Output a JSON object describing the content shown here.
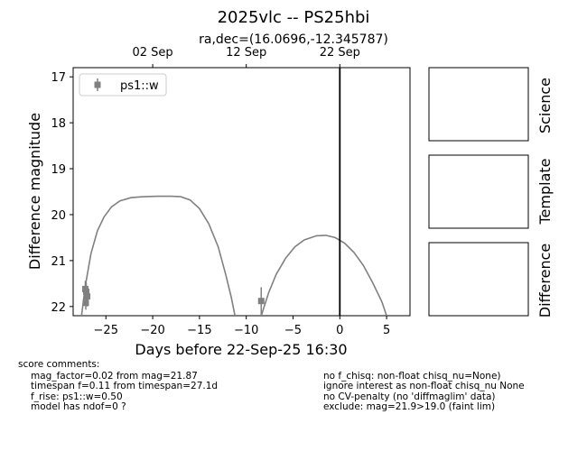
{
  "figure": {
    "title": "2025vlc -- PS25hbi",
    "subtitle": "ra,dec=(16.0696,-12.345787)"
  },
  "chart_data": {
    "type": "scatter",
    "title": "2025vlc -- PS25hbi",
    "subtitle": "ra,dec=(16.0696,-12.345787)",
    "xlabel": "Days before 22-Sep-25 16:30",
    "ylabel": "Difference magnitude",
    "xlim": [
      -28.5,
      7.5
    ],
    "ylim": [
      22.2,
      16.8
    ],
    "y_inverted": true,
    "grid": false,
    "legend_placement": "top-left",
    "x_ticks": [
      -25,
      -20,
      -15,
      -10,
      -5,
      0,
      5
    ],
    "x_tick_labels": [
      "−25",
      "−20",
      "−15",
      "−10",
      "−5",
      "0",
      "5"
    ],
    "y_ticks": [
      17,
      18,
      19,
      20,
      21,
      22
    ],
    "y_tick_labels": [
      "17",
      "18",
      "19",
      "20",
      "21",
      "22"
    ],
    "top_axis_ticks": [
      {
        "x": -20.0,
        "label": "02 Sep"
      },
      {
        "x": -10.0,
        "label": "12 Sep"
      },
      {
        "x": 0.0,
        "label": "22 Sep"
      }
    ],
    "vertical_line_x": 0,
    "series": [
      {
        "name": "ps1::w",
        "color": "#808080",
        "marker": "square",
        "points": [
          {
            "x": -27.2,
            "y": 21.62,
            "yerr": 0.18
          },
          {
            "x": -27.1,
            "y": 21.68,
            "yerr": 0.2
          },
          {
            "x": -27.0,
            "y": 21.78,
            "yerr": 0.22
          },
          {
            "x": -27.15,
            "y": 21.92,
            "yerr": 0.15
          },
          {
            "x": -8.4,
            "y": 21.88,
            "yerr": 0.3
          }
        ]
      }
    ],
    "model_curves": [
      {
        "color": "#808080",
        "points": [
          [
            -27.6,
            22.2
          ],
          [
            -27.2,
            21.55
          ],
          [
            -26.6,
            20.85
          ],
          [
            -25.9,
            20.35
          ],
          [
            -25.2,
            20.05
          ],
          [
            -24.4,
            19.83
          ],
          [
            -23.5,
            19.7
          ],
          [
            -22.3,
            19.63
          ],
          [
            -21.0,
            19.61
          ],
          [
            -19.5,
            19.6
          ],
          [
            -18.0,
            19.6
          ],
          [
            -17.0,
            19.61
          ],
          [
            -16.0,
            19.68
          ],
          [
            -15.0,
            19.87
          ],
          [
            -14.0,
            20.2
          ],
          [
            -13.0,
            20.7
          ],
          [
            -12.2,
            21.3
          ],
          [
            -11.6,
            21.8
          ],
          [
            -11.2,
            22.2
          ]
        ]
      },
      {
        "color": "#808080",
        "points": [
          [
            -8.4,
            22.2
          ],
          [
            -7.6,
            21.7
          ],
          [
            -6.8,
            21.3
          ],
          [
            -5.8,
            20.95
          ],
          [
            -4.8,
            20.7
          ],
          [
            -3.8,
            20.55
          ],
          [
            -2.5,
            20.46
          ],
          [
            -1.5,
            20.45
          ],
          [
            -0.5,
            20.5
          ],
          [
            0.5,
            20.62
          ],
          [
            1.5,
            20.82
          ],
          [
            2.5,
            21.1
          ],
          [
            3.5,
            21.48
          ],
          [
            4.5,
            21.9
          ],
          [
            5.0,
            22.2
          ]
        ]
      }
    ]
  },
  "panels": [
    {
      "label": "Science"
    },
    {
      "label": "Template"
    },
    {
      "label": "Difference"
    }
  ],
  "comments": {
    "header": "score comments:",
    "left": [
      "mag_factor=0.02 from mag=21.87",
      "timespan f=0.11 from timespan=27.1d",
      "f_rise: ps1::w=0.50",
      "model has ndof=0 ?"
    ],
    "right": [
      "no f_chisq: non-float chisq_nu=None)",
      "ignore interest as non-float chisq_nu None",
      "no CV-penalty (no 'diffmaglim' data)",
      "exclude: mag=21.9>19.0 (faint lim)"
    ]
  }
}
